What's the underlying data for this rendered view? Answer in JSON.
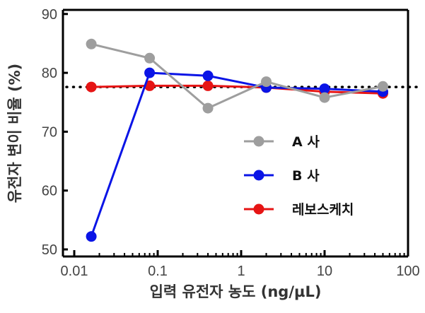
{
  "chart_data": {
    "type": "line",
    "xlabel": "입력 유전자 농도 (ng/µL)",
    "ylabel": "유전자 변이 비율 (%)",
    "xscale": "log",
    "xlim": [
      0.01,
      100
    ],
    "ylim": [
      50,
      90
    ],
    "xticks": [
      "0.01",
      "0.1",
      "1",
      "10",
      "100"
    ],
    "yticks": [
      "50",
      "60",
      "70",
      "80",
      "90"
    ],
    "x": [
      0.016,
      0.08,
      0.4,
      2,
      10,
      50
    ],
    "reference_line": {
      "y": 77.6,
      "style": "dotted",
      "color": "#000000"
    },
    "legend_position": "center-right",
    "series": [
      {
        "name": "A 사",
        "color": "#9e9e9e",
        "values": [
          84.9,
          82.5,
          74.0,
          78.5,
          75.8,
          77.7
        ]
      },
      {
        "name": "B 사",
        "color": "#0a14e6",
        "values": [
          52.2,
          80.0,
          79.5,
          77.5,
          77.3,
          76.8
        ]
      },
      {
        "name": "레보스케치",
        "color": "#e61414",
        "values": [
          77.6,
          77.8,
          77.8,
          77.5,
          76.8,
          76.5
        ]
      }
    ]
  }
}
